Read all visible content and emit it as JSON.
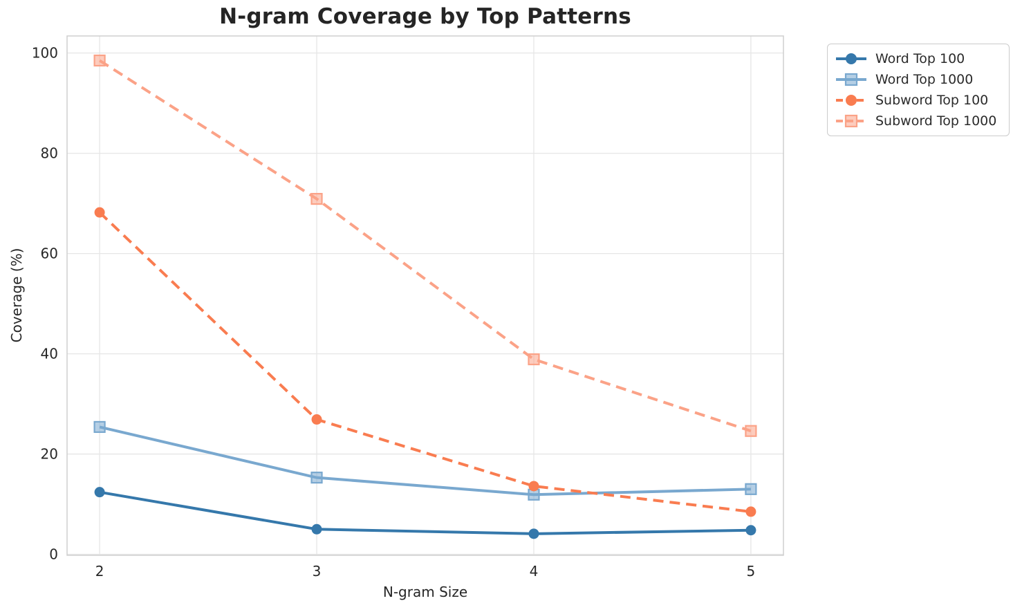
{
  "chart_data": {
    "type": "line",
    "title": "N-gram Coverage by Top Patterns",
    "xlabel": "N-gram Size",
    "ylabel": "Coverage (%)",
    "x": [
      2,
      3,
      4,
      5
    ],
    "xticks": [
      2,
      3,
      4,
      5
    ],
    "yticks": [
      0,
      20,
      40,
      60,
      80,
      100
    ],
    "xlim": [
      1.85,
      5.15
    ],
    "ylim": [
      -0.2,
      103.4
    ],
    "grid": true,
    "legend_position": "outside-top-right",
    "series": [
      {
        "name": "Word Top 100",
        "values": [
          12.4,
          5.0,
          4.1,
          4.8
        ],
        "color": "#3578ab",
        "marker": "circle",
        "line_style": "solid"
      },
      {
        "name": "Word Top 1000",
        "values": [
          25.4,
          15.3,
          11.9,
          13.0
        ],
        "color": "#79a8cf",
        "marker": "square",
        "line_style": "solid"
      },
      {
        "name": "Subword Top 100",
        "values": [
          68.2,
          26.9,
          13.6,
          8.5
        ],
        "color": "#f97c50",
        "marker": "circle",
        "line_style": "dashed"
      },
      {
        "name": "Subword Top 1000",
        "values": [
          98.5,
          70.9,
          38.9,
          24.6
        ],
        "color": "#fba287",
        "marker": "square",
        "line_style": "dashed"
      }
    ]
  }
}
